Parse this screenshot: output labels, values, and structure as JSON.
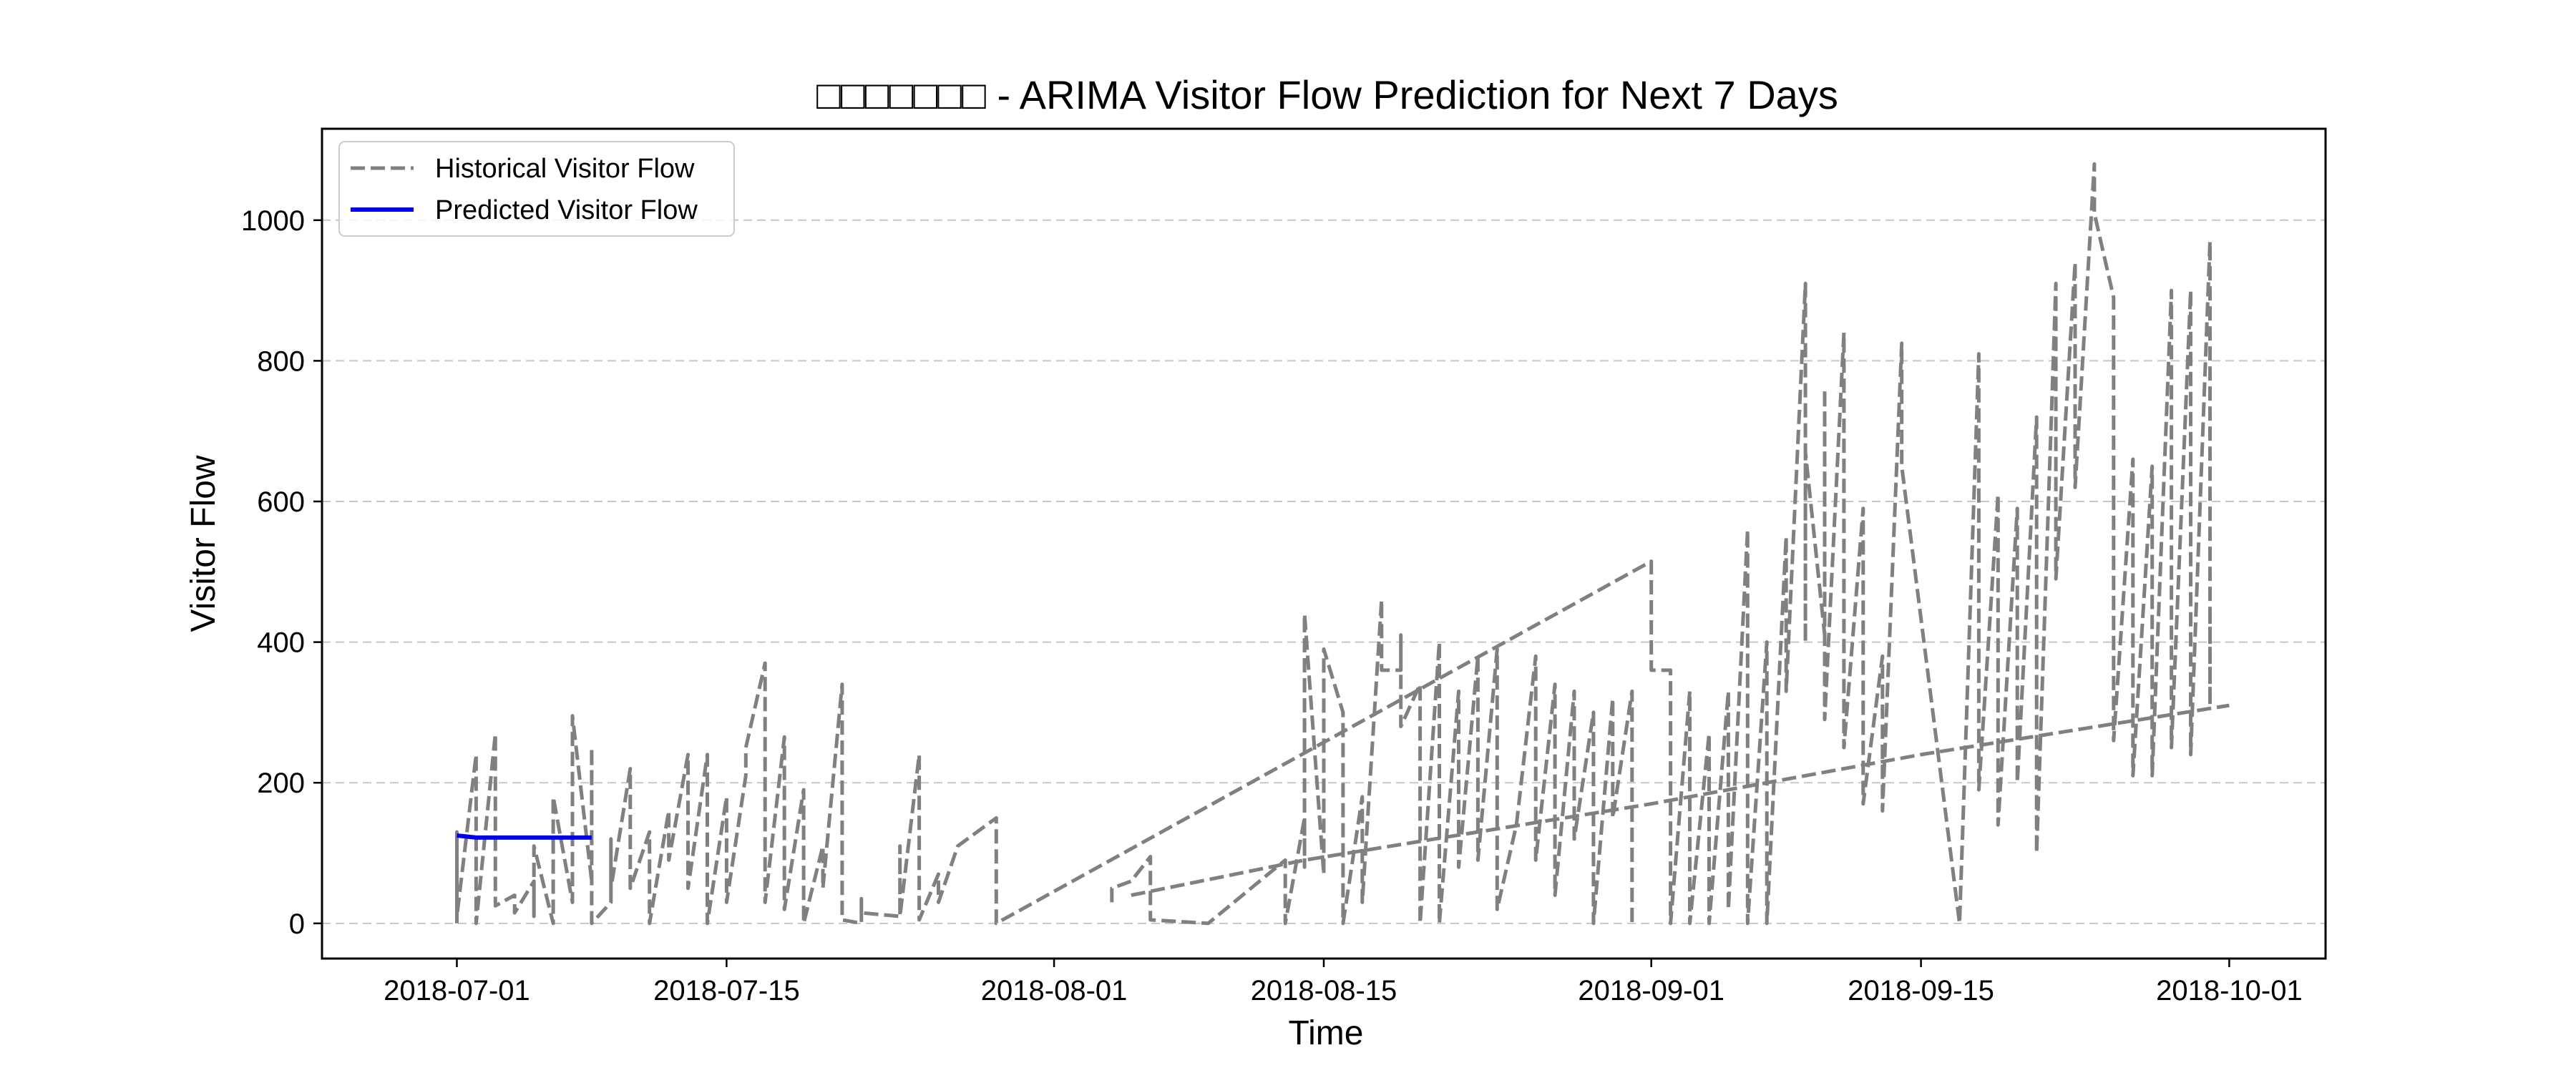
{
  "chart_data": {
    "type": "line",
    "title": "□□□□□□□ - ARIMA Visitor Flow Prediction for Next 7 Days",
    "xlabel": "Time",
    "ylabel": "Visitor Flow",
    "xlim": [
      "2018-06-24",
      "2018-10-06"
    ],
    "ylim": [
      -50,
      1130
    ],
    "yticks": [
      0,
      200,
      400,
      600,
      800,
      1000
    ],
    "xticks": [
      "2018-07-01",
      "2018-07-15",
      "2018-08-01",
      "2018-08-15",
      "2018-09-01",
      "2018-09-15",
      "2018-10-01"
    ],
    "grid": "y-dashed",
    "legend": "top-left",
    "series": [
      {
        "name": "Historical Visitor Flow",
        "style": "dashed",
        "color": "#808080",
        "points": [
          [
            "2018-07-01",
            0
          ],
          [
            "2018-07-01",
            130
          ],
          [
            "2018-07-01",
            10
          ],
          [
            "2018-07-02",
            240
          ],
          [
            "2018-07-02",
            0
          ],
          [
            "2018-07-03",
            270
          ],
          [
            "2018-07-03",
            25
          ],
          [
            "2018-07-04",
            40
          ],
          [
            "2018-07-04",
            15
          ],
          [
            "2018-07-05",
            60
          ],
          [
            "2018-07-05",
            10
          ],
          [
            "2018-07-05",
            110
          ],
          [
            "2018-07-06",
            0
          ],
          [
            "2018-07-06",
            180
          ],
          [
            "2018-07-07",
            30
          ],
          [
            "2018-07-07",
            295
          ],
          [
            "2018-07-08",
            60
          ],
          [
            "2018-07-08",
            55
          ],
          [
            "2018-07-08",
            250
          ],
          [
            "2018-07-08",
            0
          ],
          [
            "2018-07-09",
            30
          ],
          [
            "2018-07-09",
            120
          ],
          [
            "2018-07-09",
            50
          ],
          [
            "2018-07-10",
            220
          ],
          [
            "2018-07-10",
            50
          ],
          [
            "2018-07-11",
            130
          ],
          [
            "2018-07-11",
            0
          ],
          [
            "2018-07-12",
            160
          ],
          [
            "2018-07-12",
            90
          ],
          [
            "2018-07-13",
            240
          ],
          [
            "2018-07-13",
            50
          ],
          [
            "2018-07-14",
            240
          ],
          [
            "2018-07-14",
            0
          ],
          [
            "2018-07-15",
            180
          ],
          [
            "2018-07-15",
            30
          ],
          [
            "2018-07-16",
            210
          ],
          [
            "2018-07-16",
            250
          ],
          [
            "2018-07-17",
            370
          ],
          [
            "2018-07-17",
            30
          ],
          [
            "2018-07-18",
            265
          ],
          [
            "2018-07-18",
            20
          ],
          [
            "2018-07-19",
            190
          ],
          [
            "2018-07-19",
            0
          ],
          [
            "2018-07-20",
            110
          ],
          [
            "2018-07-20",
            50
          ],
          [
            "2018-07-21",
            340
          ],
          [
            "2018-07-21",
            5
          ],
          [
            "2018-07-22",
            0
          ],
          [
            "2018-07-22",
            35
          ],
          [
            "2018-07-22",
            15
          ],
          [
            "2018-07-24",
            10
          ],
          [
            "2018-07-24",
            110
          ],
          [
            "2018-07-24",
            10
          ],
          [
            "2018-07-25",
            240
          ],
          [
            "2018-07-25",
            5
          ],
          [
            "2018-07-26",
            70
          ],
          [
            "2018-07-26",
            30
          ],
          [
            "2018-07-27",
            110
          ],
          [
            "2018-07-29",
            150
          ],
          [
            "2018-07-29",
            0
          ],
          [
            "2018-09-01",
            515
          ],
          [
            "2018-09-01",
            360
          ],
          [
            "2018-09-02",
            360
          ],
          [
            "2018-09-02",
            0
          ],
          [
            "2018-09-03",
            330
          ],
          [
            "2018-09-03",
            0
          ],
          [
            "2018-09-04",
            270
          ],
          [
            "2018-09-04",
            0
          ],
          [
            "2018-09-05",
            330
          ],
          [
            "2018-09-05",
            20
          ],
          [
            "2018-09-06",
            560
          ],
          [
            "2018-09-06",
            0
          ],
          [
            "2018-09-07",
            400
          ],
          [
            "2018-09-07",
            0
          ],
          [
            "2018-09-08",
            550
          ],
          [
            "2018-09-08",
            330
          ],
          [
            "2018-09-09",
            910
          ],
          [
            "2018-09-09",
            400
          ],
          [
            "2018-09-09",
            670
          ],
          [
            "2018-09-10",
            410
          ],
          [
            "2018-09-10",
            760
          ],
          [
            "2018-09-10",
            290
          ],
          [
            "2018-09-11",
            840
          ],
          [
            "2018-09-11",
            250
          ],
          [
            "2018-09-12",
            590
          ],
          [
            "2018-09-12",
            170
          ],
          [
            "2018-09-13",
            380
          ],
          [
            "2018-09-13",
            160
          ],
          [
            "2018-09-14",
            825
          ],
          [
            "2018-09-14",
            650
          ],
          [
            "2018-09-17",
            0
          ],
          [
            "2018-09-18",
            810
          ],
          [
            "2018-09-18",
            190
          ],
          [
            "2018-09-19",
            610
          ],
          [
            "2018-09-19",
            140
          ],
          [
            "2018-09-20",
            590
          ],
          [
            "2018-09-20",
            200
          ],
          [
            "2018-09-21",
            720
          ],
          [
            "2018-09-21",
            100
          ],
          [
            "2018-09-22",
            910
          ],
          [
            "2018-09-22",
            490
          ],
          [
            "2018-09-23",
            940
          ],
          [
            "2018-09-23",
            620
          ],
          [
            "2018-09-24",
            1080
          ],
          [
            "2018-09-24",
            1010
          ],
          [
            "2018-09-25",
            890
          ],
          [
            "2018-09-25",
            260
          ],
          [
            "2018-09-26",
            660
          ],
          [
            "2018-09-26",
            210
          ],
          [
            "2018-09-27",
            650
          ],
          [
            "2018-09-27",
            210
          ],
          [
            "2018-09-28",
            900
          ],
          [
            "2018-09-28",
            250
          ],
          [
            "2018-09-29",
            900
          ],
          [
            "2018-09-29",
            240
          ],
          [
            "2018-09-30",
            970
          ],
          [
            "2018-09-30",
            310
          ],
          [
            "2018-09-30",
            450
          ]
        ]
      },
      {
        "name": "Historical Visitor Flow",
        "style": "dashed",
        "color": "#808080",
        "points": [
          [
            "2018-08-04",
            30
          ],
          [
            "2018-08-04",
            50
          ],
          [
            "2018-08-05",
            60
          ],
          [
            "2018-08-06",
            95
          ],
          [
            "2018-08-06",
            5
          ],
          [
            "2018-08-09",
            0
          ],
          [
            "2018-08-13",
            90
          ],
          [
            "2018-08-13",
            0
          ],
          [
            "2018-08-14",
            150
          ],
          [
            "2018-08-14",
            80
          ],
          [
            "2018-08-14",
            440
          ],
          [
            "2018-08-15",
            70
          ],
          [
            "2018-08-15",
            390
          ],
          [
            "2018-08-16",
            300
          ],
          [
            "2018-08-16",
            0
          ],
          [
            "2018-08-17",
            180
          ],
          [
            "2018-08-17",
            30
          ],
          [
            "2018-08-18",
            460
          ],
          [
            "2018-08-18",
            360
          ],
          [
            "2018-08-19",
            360
          ],
          [
            "2018-08-19",
            410
          ],
          [
            "2018-08-19",
            280
          ],
          [
            "2018-08-20",
            340
          ],
          [
            "2018-08-20",
            0
          ],
          [
            "2018-08-21",
            400
          ],
          [
            "2018-08-21",
            0
          ],
          [
            "2018-08-22",
            330
          ],
          [
            "2018-08-22",
            80
          ],
          [
            "2018-08-23",
            380
          ],
          [
            "2018-08-23",
            90
          ],
          [
            "2018-08-24",
            390
          ],
          [
            "2018-08-24",
            20
          ],
          [
            "2018-08-25",
            140
          ],
          [
            "2018-08-26",
            380
          ],
          [
            "2018-08-26",
            90
          ],
          [
            "2018-08-27",
            340
          ],
          [
            "2018-08-27",
            40
          ],
          [
            "2018-08-28",
            330
          ],
          [
            "2018-08-28",
            120
          ],
          [
            "2018-08-29",
            300
          ],
          [
            "2018-08-29",
            0
          ],
          [
            "2018-08-30",
            320
          ],
          [
            "2018-08-30",
            150
          ],
          [
            "2018-08-31",
            330
          ],
          [
            "2018-08-31",
            0
          ]
        ]
      },
      {
        "name": "Historical Visitor Flow",
        "style": "dashed",
        "color": "#808080",
        "points": [
          [
            "2018-08-05",
            40
          ],
          [
            "2018-08-14",
            90
          ],
          [
            "2018-09-01",
            170
          ],
          [
            "2018-09-15",
            240
          ],
          [
            "2018-10-01",
            310
          ]
        ]
      },
      {
        "name": "Predicted Visitor Flow",
        "style": "solid",
        "color": "#0000ee",
        "points": [
          [
            "2018-07-01",
            125
          ],
          [
            "2018-07-02",
            122
          ],
          [
            "2018-07-03",
            122
          ],
          [
            "2018-07-04",
            122
          ],
          [
            "2018-07-05",
            122
          ],
          [
            "2018-07-06",
            122
          ],
          [
            "2018-07-07",
            122
          ],
          [
            "2018-07-08",
            122
          ]
        ]
      }
    ],
    "legend_entries": [
      {
        "label": "Historical Visitor Flow",
        "style": "dashed",
        "color": "#808080"
      },
      {
        "label": "Predicted Visitor Flow",
        "style": "solid",
        "color": "#0000ee"
      }
    ]
  }
}
